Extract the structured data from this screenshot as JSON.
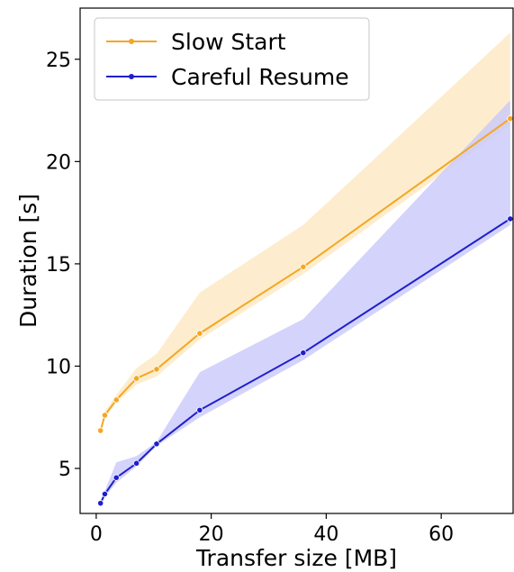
{
  "chart_data": {
    "type": "line",
    "title": "",
    "xlabel": "Transfer size [MB]",
    "ylabel": "Duration [s]",
    "xlim": [
      -2.8,
      72.5
    ],
    "ylim": [
      2.8,
      27.5
    ],
    "xticks": [
      0,
      20,
      40,
      60
    ],
    "yticks": [
      5,
      10,
      15,
      20,
      25
    ],
    "grid": false,
    "legend_position": "top-left",
    "series": [
      {
        "name": "Slow Start",
        "color": "#f5a623",
        "band_color": "#fde8c2",
        "x": [
          0.75,
          1.5,
          3.5,
          7,
          10.5,
          18,
          36,
          72
        ],
        "y": [
          6.85,
          7.6,
          8.35,
          9.4,
          9.85,
          11.6,
          14.85,
          22.1
        ],
        "y_lower": [
          6.85,
          7.5,
          8.2,
          9.1,
          9.5,
          11.3,
          14.5,
          21.8
        ],
        "y_upper": [
          6.9,
          7.8,
          8.6,
          9.9,
          10.6,
          13.6,
          16.9,
          26.3
        ]
      },
      {
        "name": "Careful Resume",
        "color": "#1f1fcc",
        "band_color": "#c8c8fa",
        "x": [
          0.75,
          1.5,
          3.5,
          7,
          10.5,
          18,
          36,
          72
        ],
        "y": [
          3.3,
          3.75,
          4.55,
          5.25,
          6.2,
          7.85,
          10.65,
          17.2
        ],
        "y_lower": [
          3.2,
          3.6,
          4.3,
          5.1,
          6.1,
          7.5,
          10.3,
          16.9
        ],
        "y_upper": [
          3.4,
          3.9,
          5.3,
          5.6,
          6.3,
          9.7,
          12.3,
          23.0
        ]
      }
    ]
  }
}
